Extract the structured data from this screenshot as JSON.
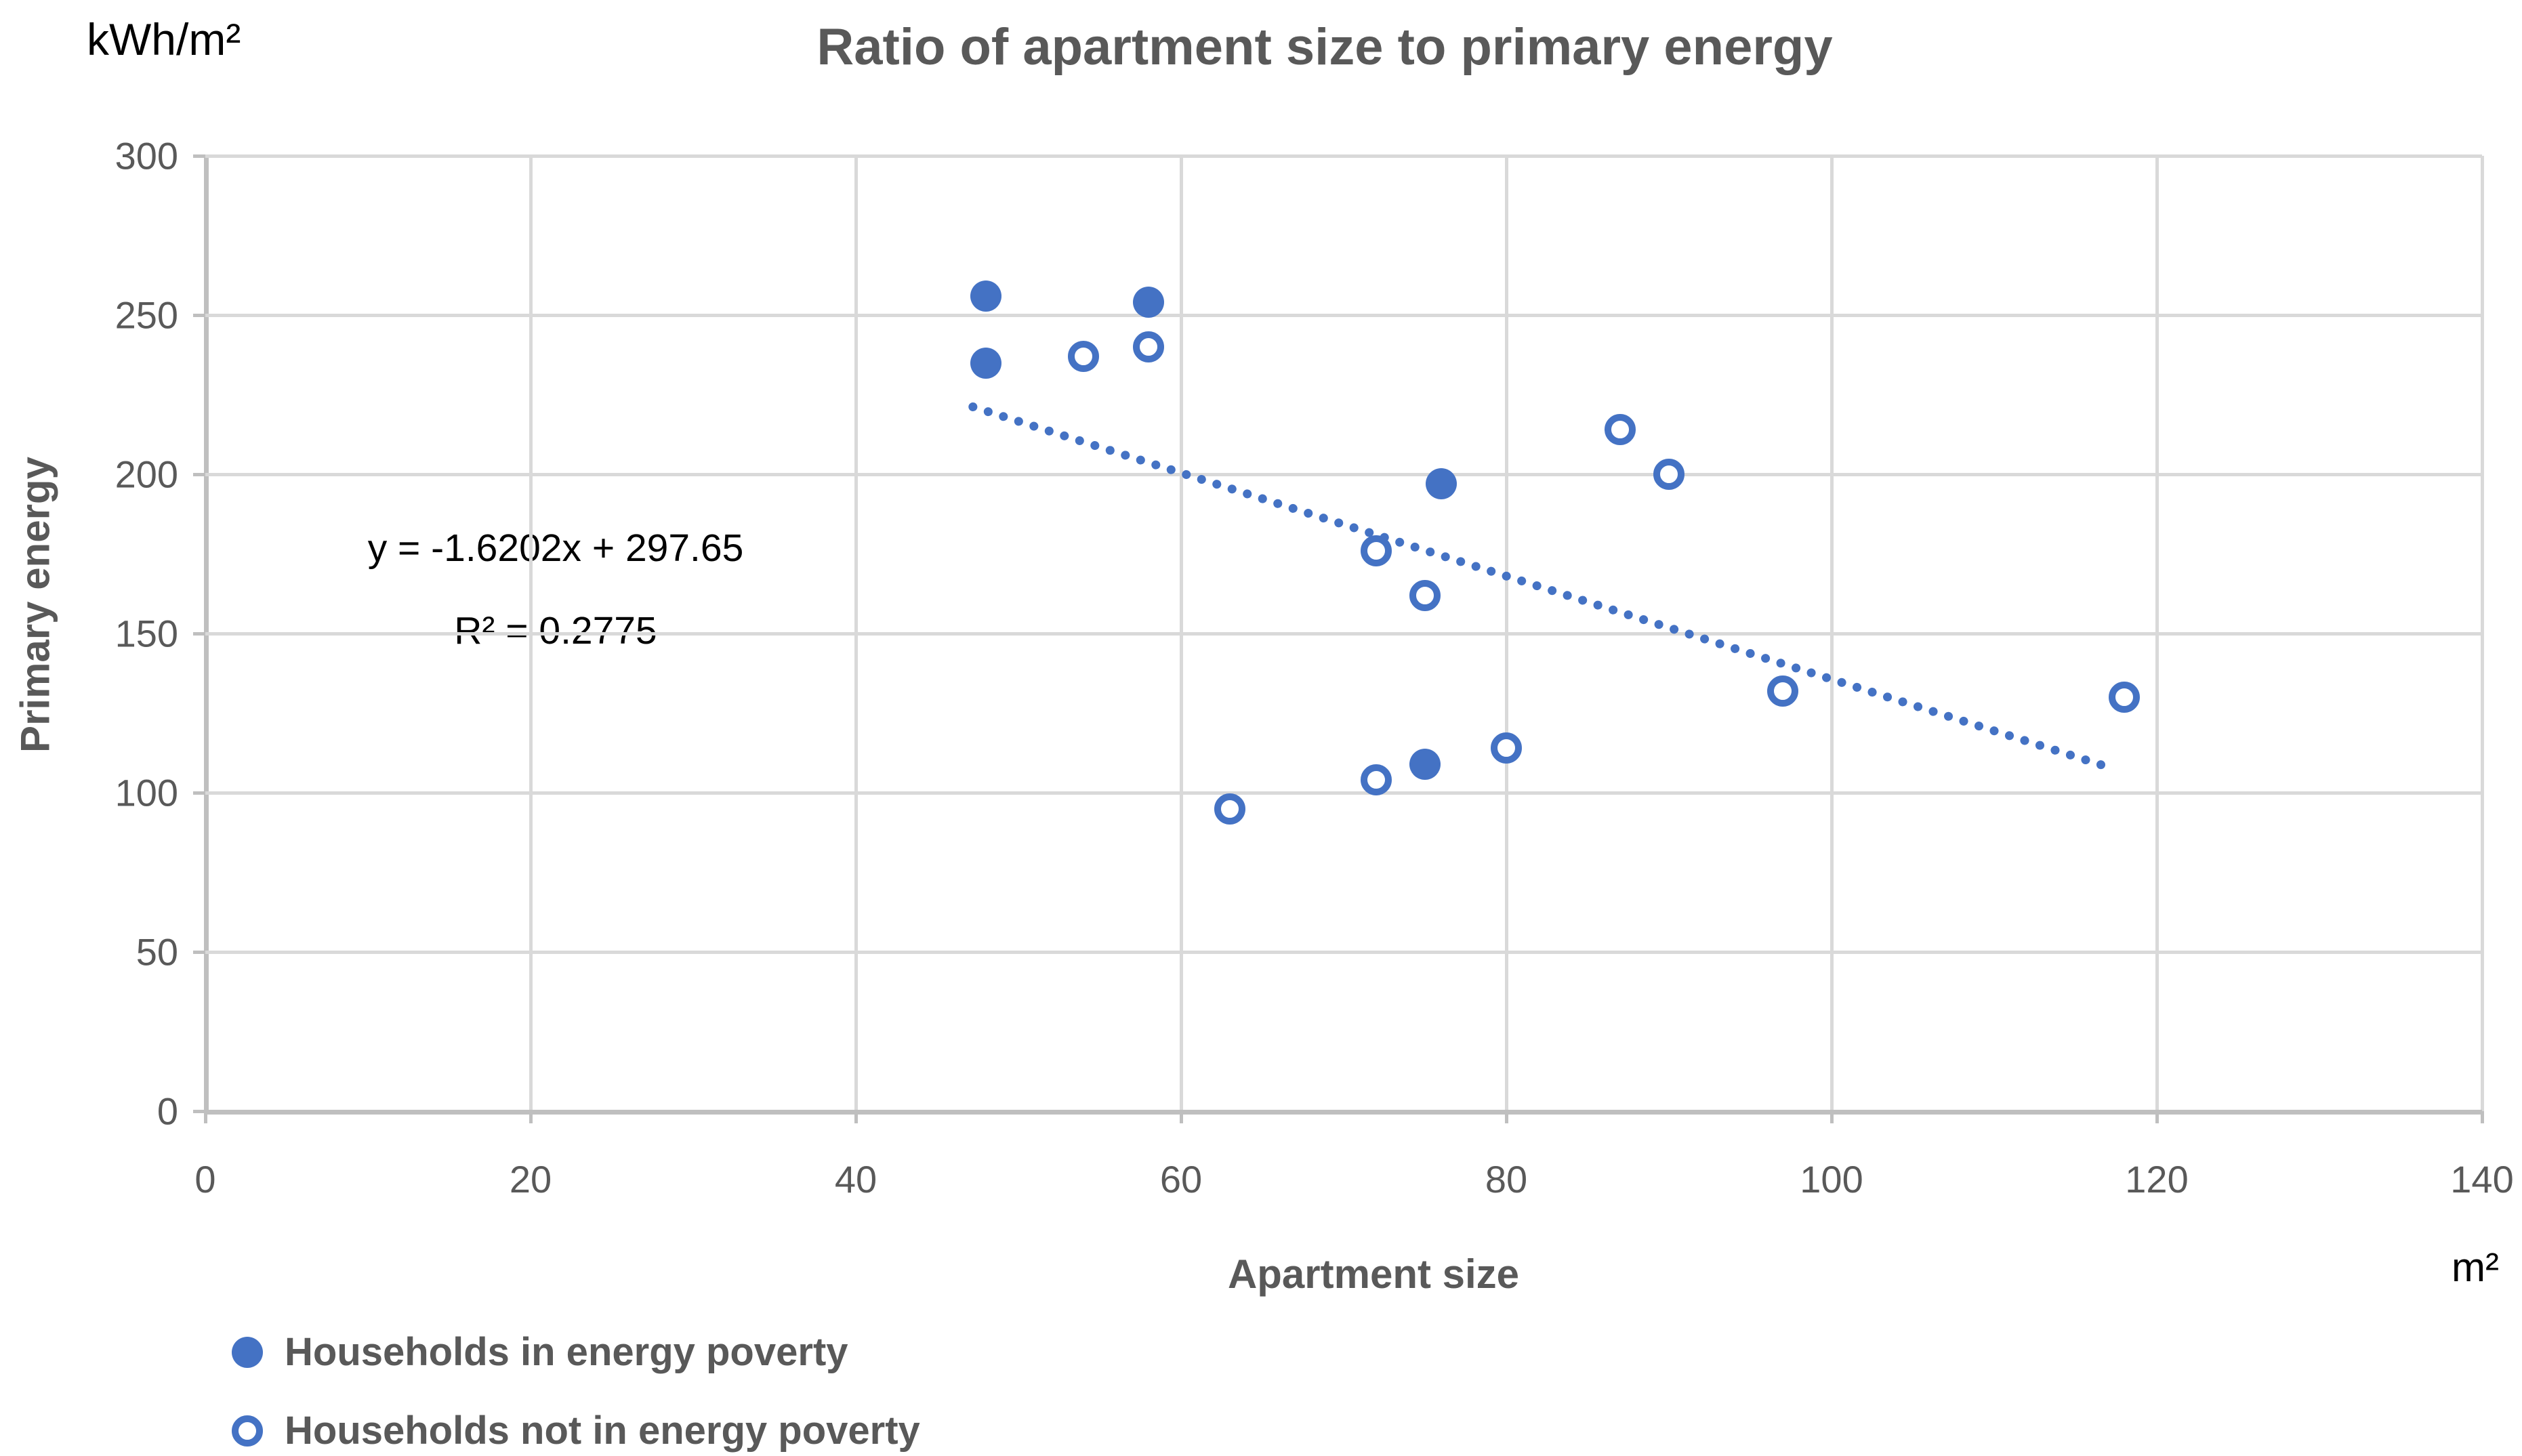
{
  "colors": {
    "accent_blue": "#4472C4",
    "gridline": "#D9D9D9",
    "axis_line": "#BFBFBF",
    "label_gray": "#595959",
    "text_black": "#000000"
  },
  "chart_data": {
    "type": "scatter",
    "title": "Ratio of apartment size to primary energy",
    "xlabel": "Apartment size",
    "ylabel": "Primary energy",
    "x_unit_label": "m²",
    "y_unit_label": "kWh/m²",
    "xlim": [
      0,
      140
    ],
    "ylim": [
      0,
      300
    ],
    "x_ticks": [
      0,
      20,
      40,
      60,
      80,
      100,
      120,
      140
    ],
    "y_ticks": [
      0,
      50,
      100,
      150,
      200,
      250,
      300
    ],
    "grid": "both",
    "legend_position": "bottom-left",
    "series": [
      {
        "name": "Households in energy poverty",
        "marker": "filled",
        "points": [
          [
            48,
            256
          ],
          [
            48,
            235
          ],
          [
            58,
            254
          ],
          [
            76,
            197
          ],
          [
            75,
            109
          ]
        ]
      },
      {
        "name": "Households not in energy poverty",
        "marker": "open",
        "points": [
          [
            54,
            237
          ],
          [
            58,
            240
          ],
          [
            63,
            95
          ],
          [
            72,
            104
          ],
          [
            72,
            176
          ],
          [
            75,
            162
          ],
          [
            80,
            114
          ],
          [
            87,
            214
          ],
          [
            90,
            200
          ],
          [
            97,
            132
          ],
          [
            118,
            130
          ]
        ]
      }
    ],
    "trendline": {
      "style": "dotted",
      "slope": -1.6202,
      "intercept": 297.65,
      "x_start": 47.2,
      "x_end": 117.4,
      "equation_label": "y = -1.6202x + 297.65",
      "r2_label": "R² = 0.2775"
    }
  },
  "legend": {
    "items": [
      {
        "label": "Households in energy poverty",
        "marker": "filled"
      },
      {
        "label": "Households not in energy poverty",
        "marker": "open"
      }
    ]
  }
}
